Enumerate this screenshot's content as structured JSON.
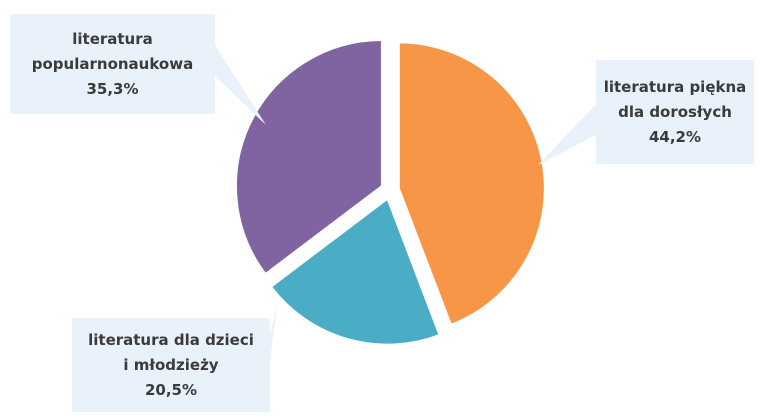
{
  "chart_data": {
    "type": "pie",
    "title": "",
    "legend": "none",
    "slices": [
      {
        "label_lines": [
          "literatura piękna",
          "dla dorosłych"
        ],
        "value": 44.2,
        "value_label": "44,2%",
        "color": "#f79646"
      },
      {
        "label_lines": [
          "literatura dla dzieci",
          "i młodzieży"
        ],
        "value": 20.5,
        "value_label": "20,5%",
        "color": "#4bacc6"
      },
      {
        "label_lines": [
          "literatura",
          "popularnonaukowa"
        ],
        "value": 35.3,
        "value_label": "35,3%",
        "color": "#8064a2"
      }
    ],
    "callout_fill": "#e9f1fb"
  }
}
